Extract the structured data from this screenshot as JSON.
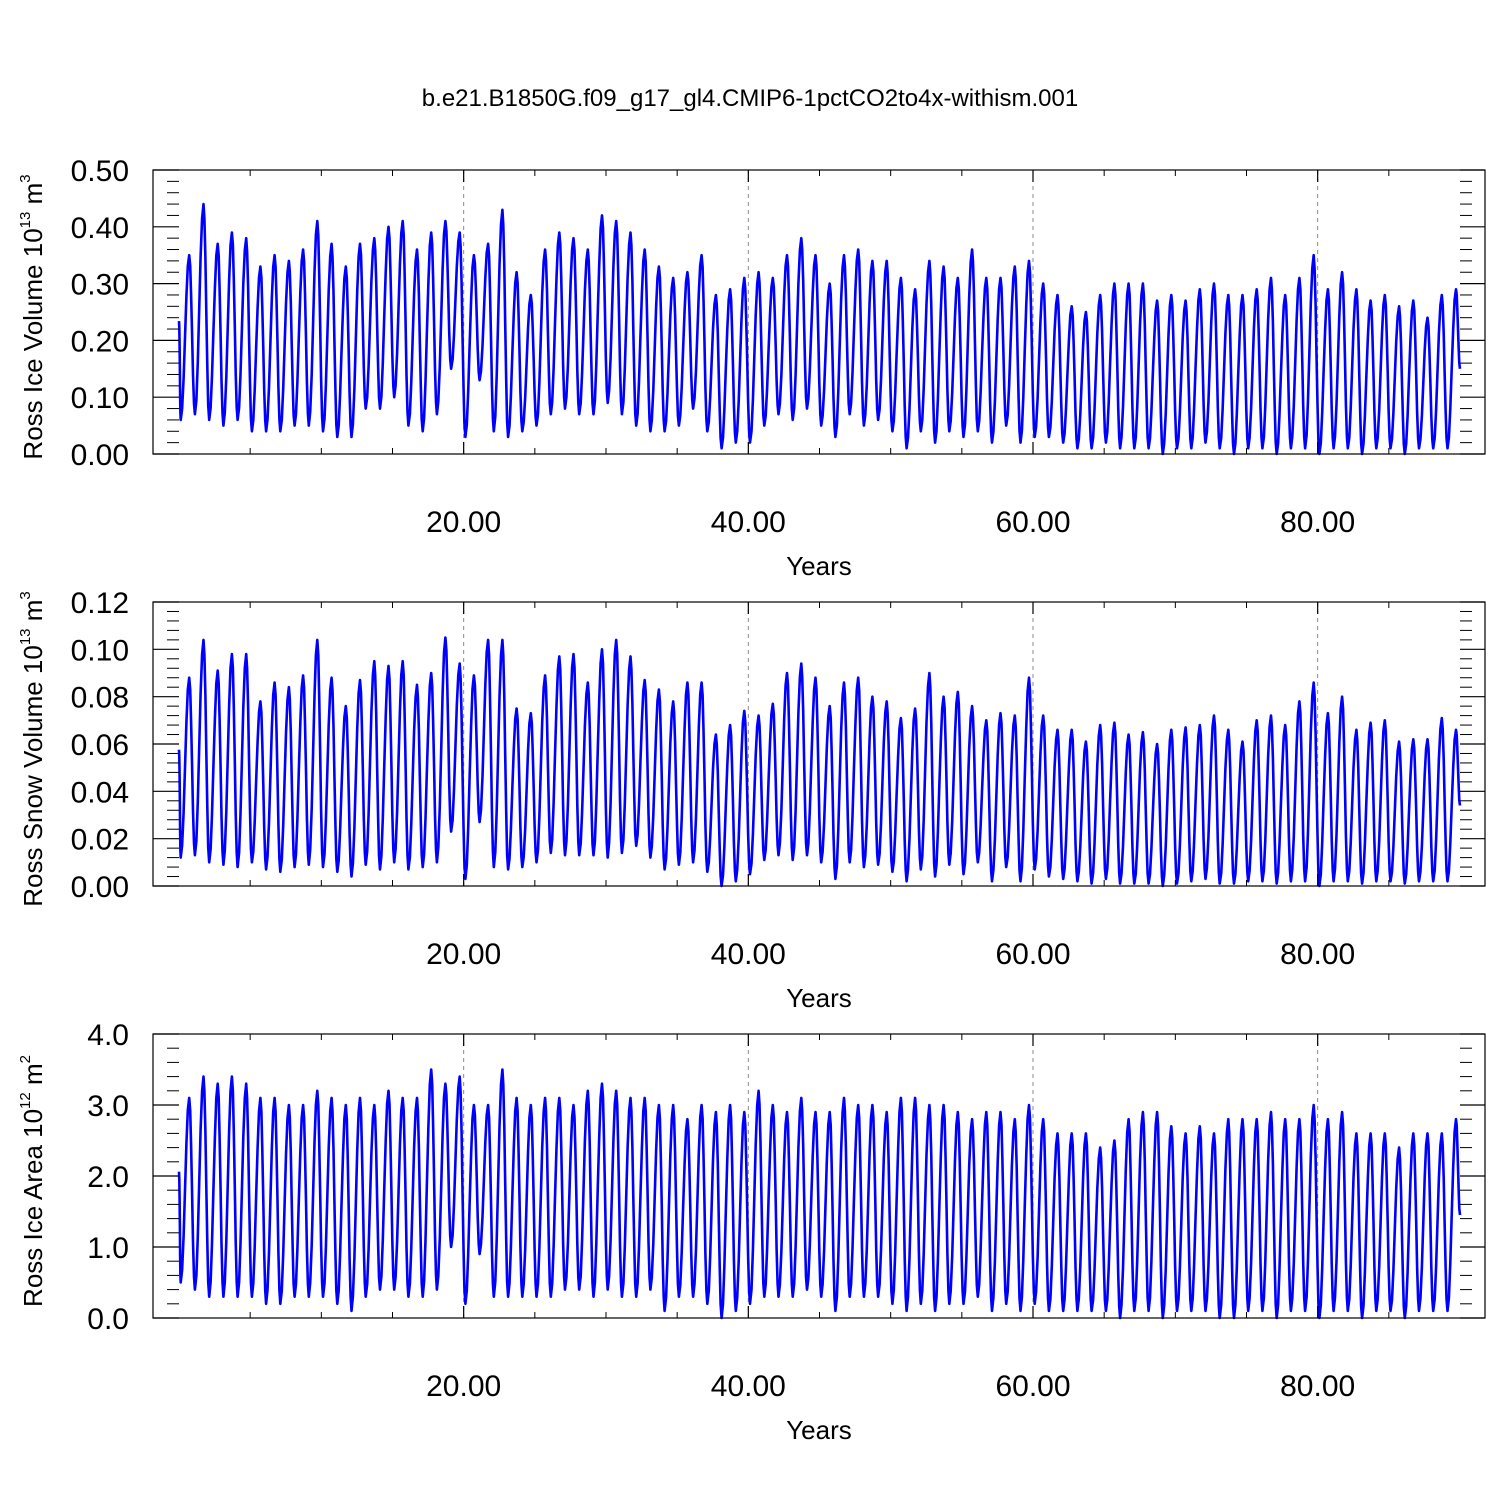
{
  "title": "b.e21.B1850G.f09_g17_gl4.CMIP6-1pctCO2to4x-withism.001",
  "series_color": "#0000ff",
  "chart_data": [
    {
      "type": "line",
      "ylabel_parts": [
        "Ross Ice Volume 10",
        "13",
        " m",
        "3"
      ],
      "xlabel": "Years",
      "xlim": [
        0.0,
        90.0
      ],
      "ylim": [
        0.0,
        0.5
      ],
      "xticks": [
        20,
        40,
        60,
        80
      ],
      "xtick_labels": [
        "20.00",
        "40.00",
        "60.00",
        "80.00"
      ],
      "yticks": [
        0.0,
        0.1,
        0.2,
        0.3,
        0.4,
        0.5
      ],
      "ytick_labels": [
        "0.00",
        "0.10",
        "0.20",
        "0.30",
        "0.40",
        "0.50"
      ],
      "grid": "vertical dashed at x ticks",
      "series": [
        {
          "peaks": [
            0.35,
            0.44,
            0.37,
            0.39,
            0.38,
            0.33,
            0.35,
            0.34,
            0.36,
            0.41,
            0.37,
            0.33,
            0.37,
            0.38,
            0.4,
            0.41,
            0.36,
            0.39,
            0.41,
            0.39,
            0.35,
            0.37,
            0.43,
            0.32,
            0.28,
            0.36,
            0.39,
            0.38,
            0.36,
            0.42,
            0.41,
            0.39,
            0.36,
            0.33,
            0.31,
            0.32,
            0.35,
            0.28,
            0.29,
            0.31,
            0.32,
            0.31,
            0.35,
            0.38,
            0.35,
            0.3,
            0.35,
            0.36,
            0.34,
            0.34,
            0.31,
            0.29,
            0.34,
            0.33,
            0.31,
            0.36,
            0.31,
            0.31,
            0.33,
            0.34,
            0.3,
            0.28,
            0.26,
            0.25,
            0.28,
            0.3,
            0.3,
            0.3,
            0.27,
            0.28,
            0.27,
            0.29,
            0.3,
            0.28,
            0.28,
            0.29,
            0.31,
            0.28,
            0.31,
            0.35,
            0.29,
            0.32,
            0.29,
            0.27,
            0.28,
            0.26,
            0.27,
            0.24,
            0.28,
            0.29
          ],
          "troughs": [
            0.06,
            0.07,
            0.06,
            0.05,
            0.06,
            0.04,
            0.04,
            0.04,
            0.05,
            0.05,
            0.04,
            0.03,
            0.03,
            0.08,
            0.08,
            0.1,
            0.05,
            0.04,
            0.07,
            0.15,
            0.03,
            0.13,
            0.04,
            0.03,
            0.04,
            0.05,
            0.07,
            0.08,
            0.07,
            0.07,
            0.09,
            0.07,
            0.05,
            0.04,
            0.04,
            0.05,
            0.08,
            0.04,
            0.01,
            0.02,
            0.02,
            0.05,
            0.07,
            0.06,
            0.08,
            0.05,
            0.03,
            0.07,
            0.05,
            0.06,
            0.04,
            0.01,
            0.04,
            0.02,
            0.04,
            0.03,
            0.04,
            0.02,
            0.05,
            0.02,
            0.03,
            0.03,
            0.02,
            0.01,
            0.01,
            0.02,
            0.01,
            0.01,
            0.01,
            0.0,
            0.01,
            0.01,
            0.02,
            0.01,
            0.0,
            0.01,
            0.01,
            0.0,
            0.01,
            0.01,
            0.0,
            0.01,
            0.01,
            0.0,
            0.01,
            0.01,
            0.0,
            0.01,
            0.01,
            0.01
          ]
        }
      ]
    },
    {
      "type": "line",
      "ylabel_parts": [
        "Ross Snow Volume 10",
        "13",
        " m",
        "3"
      ],
      "xlabel": "Years",
      "xlim": [
        0.0,
        90.0
      ],
      "ylim": [
        0.0,
        0.12
      ],
      "xticks": [
        20,
        40,
        60,
        80
      ],
      "xtick_labels": [
        "20.00",
        "40.00",
        "60.00",
        "80.00"
      ],
      "yticks": [
        0.0,
        0.02,
        0.04,
        0.06,
        0.08,
        0.1,
        0.12
      ],
      "ytick_labels": [
        "0.00",
        "0.02",
        "0.04",
        "0.06",
        "0.08",
        "0.10",
        "0.12"
      ],
      "grid": "vertical dashed at x ticks",
      "series": [
        {
          "peaks": [
            0.088,
            0.104,
            0.091,
            0.098,
            0.098,
            0.078,
            0.086,
            0.084,
            0.089,
            0.104,
            0.088,
            0.076,
            0.087,
            0.095,
            0.093,
            0.095,
            0.085,
            0.09,
            0.105,
            0.094,
            0.089,
            0.104,
            0.104,
            0.075,
            0.073,
            0.089,
            0.097,
            0.098,
            0.086,
            0.1,
            0.104,
            0.097,
            0.087,
            0.083,
            0.078,
            0.086,
            0.086,
            0.064,
            0.068,
            0.074,
            0.072,
            0.077,
            0.09,
            0.094,
            0.088,
            0.076,
            0.086,
            0.088,
            0.08,
            0.078,
            0.071,
            0.075,
            0.09,
            0.08,
            0.082,
            0.076,
            0.07,
            0.073,
            0.072,
            0.088,
            0.072,
            0.066,
            0.066,
            0.061,
            0.068,
            0.069,
            0.064,
            0.065,
            0.06,
            0.066,
            0.067,
            0.068,
            0.072,
            0.066,
            0.061,
            0.07,
            0.072,
            0.068,
            0.078,
            0.086,
            0.073,
            0.08,
            0.066,
            0.069,
            0.07,
            0.061,
            0.062,
            0.062,
            0.071,
            0.066
          ],
          "troughs": [
            0.012,
            0.013,
            0.01,
            0.009,
            0.008,
            0.01,
            0.007,
            0.006,
            0.008,
            0.009,
            0.008,
            0.006,
            0.004,
            0.009,
            0.007,
            0.01,
            0.007,
            0.008,
            0.01,
            0.023,
            0.003,
            0.027,
            0.008,
            0.007,
            0.008,
            0.01,
            0.014,
            0.013,
            0.013,
            0.013,
            0.012,
            0.014,
            0.017,
            0.012,
            0.007,
            0.009,
            0.01,
            0.006,
            0.0,
            0.002,
            0.005,
            0.011,
            0.013,
            0.011,
            0.013,
            0.01,
            0.003,
            0.01,
            0.008,
            0.009,
            0.006,
            0.002,
            0.007,
            0.004,
            0.009,
            0.005,
            0.01,
            0.002,
            0.008,
            0.002,
            0.007,
            0.004,
            0.003,
            0.002,
            0.001,
            0.003,
            0.001,
            0.001,
            0.001,
            0.0,
            0.001,
            0.002,
            0.003,
            0.001,
            0.001,
            0.002,
            0.002,
            0.001,
            0.002,
            0.002,
            0.0,
            0.002,
            0.002,
            0.001,
            0.002,
            0.002,
            0.001,
            0.002,
            0.002,
            0.002
          ]
        }
      ]
    },
    {
      "type": "line",
      "ylabel_parts": [
        "Ross Ice Area 10",
        "12",
        " m",
        "2"
      ],
      "xlabel": "Years",
      "xlim": [
        0.0,
        90.0
      ],
      "ylim": [
        0.0,
        4.0
      ],
      "xticks": [
        20,
        40,
        60,
        80
      ],
      "xtick_labels": [
        "20.00",
        "40.00",
        "60.00",
        "80.00"
      ],
      "yticks": [
        0.0,
        1.0,
        2.0,
        3.0,
        4.0
      ],
      "ytick_labels": [
        "0.0",
        "1.0",
        "2.0",
        "3.0",
        "4.0"
      ],
      "grid": "vertical dashed at x ticks",
      "series": [
        {
          "peaks": [
            3.1,
            3.4,
            3.3,
            3.4,
            3.3,
            3.1,
            3.1,
            3.0,
            3.0,
            3.2,
            3.1,
            3.0,
            3.1,
            3.0,
            3.2,
            3.1,
            3.1,
            3.5,
            3.3,
            3.4,
            3.0,
            3.0,
            3.5,
            3.1,
            3.0,
            3.1,
            3.1,
            3.0,
            3.2,
            3.3,
            3.2,
            3.1,
            3.1,
            3.0,
            3.0,
            2.8,
            3.0,
            2.9,
            3.0,
            2.9,
            3.2,
            3.0,
            2.9,
            3.1,
            2.9,
            2.9,
            3.1,
            3.0,
            3.0,
            2.9,
            3.1,
            3.1,
            3.0,
            3.0,
            2.9,
            2.8,
            2.9,
            2.9,
            2.8,
            3.0,
            2.8,
            2.6,
            2.6,
            2.6,
            2.4,
            2.5,
            2.8,
            2.9,
            2.9,
            2.7,
            2.6,
            2.7,
            2.6,
            2.8,
            2.8,
            2.8,
            2.9,
            2.8,
            2.8,
            3.0,
            2.8,
            2.9,
            2.6,
            2.6,
            2.6,
            2.4,
            2.6,
            2.6,
            2.6,
            2.8
          ],
          "troughs": [
            0.5,
            0.4,
            0.3,
            0.3,
            0.3,
            0.3,
            0.2,
            0.2,
            0.3,
            0.3,
            0.3,
            0.2,
            0.1,
            0.3,
            0.4,
            0.4,
            0.3,
            0.3,
            0.4,
            1.0,
            0.2,
            0.9,
            0.3,
            0.3,
            0.3,
            0.3,
            0.3,
            0.4,
            0.4,
            0.3,
            0.4,
            0.3,
            0.3,
            0.4,
            0.1,
            0.3,
            0.3,
            0.2,
            0.0,
            0.1,
            0.2,
            0.3,
            0.3,
            0.3,
            0.4,
            0.3,
            0.1,
            0.3,
            0.3,
            0.3,
            0.2,
            0.1,
            0.2,
            0.1,
            0.2,
            0.2,
            0.3,
            0.1,
            0.2,
            0.1,
            0.2,
            0.1,
            0.1,
            0.1,
            0.1,
            0.1,
            0.0,
            0.1,
            0.1,
            0.0,
            0.1,
            0.1,
            0.1,
            0.0,
            0.0,
            0.1,
            0.1,
            0.0,
            0.1,
            0.1,
            0.0,
            0.1,
            0.1,
            0.0,
            0.1,
            0.1,
            0.0,
            0.1,
            0.1,
            0.1
          ]
        }
      ]
    }
  ]
}
